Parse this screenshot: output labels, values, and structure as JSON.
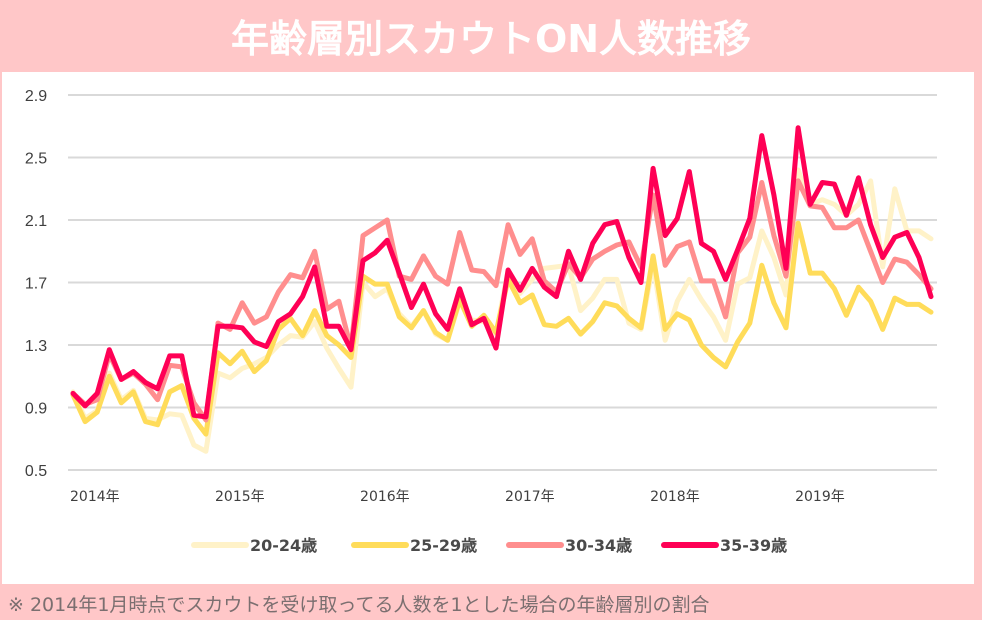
{
  "title": "年齢層別スカウトON人数推移",
  "footnote": "※ 2014年1月時点でスカウトを受け取ってる人数を1とした場合の年齢層別の割合",
  "chart_data": {
    "type": "line",
    "title": "年齢層別スカウトON人数推移",
    "xlabel": "",
    "ylabel": "",
    "ylim": [
      0.5,
      2.9
    ],
    "yticks": [
      0.5,
      0.9,
      1.3,
      1.7,
      2.1,
      2.5,
      2.9
    ],
    "ytick_labels": [
      "0.5",
      "0.9",
      "1.3",
      "1.7",
      "2.1",
      "2.5",
      "2.9"
    ],
    "grid": true,
    "legend_position": "bottom",
    "x_start": "2014-01",
    "x_frequency": "monthly",
    "xtick_labels": [
      {
        "index": 0,
        "label": "2014年"
      },
      {
        "index": 12,
        "label": "2015年"
      },
      {
        "index": 24,
        "label": "2016年"
      },
      {
        "index": 36,
        "label": "2017年"
      },
      {
        "index": 48,
        "label": "2018年"
      },
      {
        "index": 60,
        "label": "2019年"
      }
    ],
    "series": [
      {
        "name": "20-24歳",
        "color": "#fff2c8",
        "values": [
          1.0,
          0.83,
          0.88,
          1.12,
          0.95,
          1.01,
          0.83,
          0.82,
          0.86,
          0.85,
          0.66,
          0.62,
          1.12,
          1.09,
          1.15,
          1.18,
          1.22,
          1.3,
          1.36,
          1.35,
          1.45,
          1.28,
          1.15,
          1.03,
          1.7,
          1.61,
          1.66,
          1.5,
          1.42,
          1.52,
          1.37,
          1.33,
          1.58,
          1.46,
          1.45,
          1.37,
          1.78,
          1.63,
          1.72,
          1.79,
          1.8,
          1.81,
          1.52,
          1.6,
          1.72,
          1.72,
          1.44,
          1.4,
          1.82,
          1.33,
          1.58,
          1.72,
          1.59,
          1.48,
          1.33,
          1.69,
          1.73,
          2.03,
          1.86,
          1.62,
          2.42,
          2.2,
          2.23,
          2.2,
          2.13,
          2.2,
          2.35,
          1.8,
          2.3,
          2.03,
          2.03,
          1.98
        ]
      },
      {
        "name": "25-29歳",
        "color": "#ffdc5a",
        "values": [
          0.98,
          0.81,
          0.87,
          1.1,
          0.93,
          1.0,
          0.81,
          0.79,
          1.0,
          1.04,
          0.83,
          0.73,
          1.25,
          1.18,
          1.26,
          1.13,
          1.2,
          1.4,
          1.47,
          1.36,
          1.52,
          1.36,
          1.3,
          1.22,
          1.74,
          1.69,
          1.69,
          1.48,
          1.41,
          1.52,
          1.38,
          1.33,
          1.59,
          1.42,
          1.49,
          1.38,
          1.72,
          1.57,
          1.62,
          1.43,
          1.42,
          1.47,
          1.37,
          1.45,
          1.57,
          1.55,
          1.47,
          1.41,
          1.87,
          1.4,
          1.5,
          1.46,
          1.3,
          1.22,
          1.16,
          1.32,
          1.44,
          1.81,
          1.57,
          1.41,
          2.08,
          1.76,
          1.76,
          1.66,
          1.49,
          1.67,
          1.58,
          1.4,
          1.6,
          1.56,
          1.56,
          1.51
        ]
      },
      {
        "name": "30-34歳",
        "color": "#ff8e8e",
        "values": [
          0.99,
          0.92,
          0.95,
          1.24,
          1.08,
          1.12,
          1.05,
          0.95,
          1.17,
          1.16,
          0.93,
          0.82,
          1.44,
          1.4,
          1.57,
          1.44,
          1.48,
          1.64,
          1.75,
          1.73,
          1.9,
          1.53,
          1.58,
          1.28,
          2.0,
          2.05,
          2.1,
          1.74,
          1.72,
          1.87,
          1.74,
          1.69,
          2.02,
          1.78,
          1.77,
          1.68,
          2.07,
          1.88,
          1.98,
          1.71,
          1.64,
          1.82,
          1.73,
          1.85,
          1.9,
          1.94,
          1.96,
          1.8,
          2.26,
          1.81,
          1.93,
          1.96,
          1.71,
          1.71,
          1.48,
          1.89,
          1.99,
          2.34,
          2.0,
          1.74,
          2.35,
          2.19,
          2.18,
          2.05,
          2.05,
          2.1,
          1.9,
          1.7,
          1.85,
          1.83,
          1.75,
          1.66
        ]
      },
      {
        "name": "35-39歳",
        "color": "#ff0055",
        "values": [
          0.99,
          0.91,
          0.99,
          1.27,
          1.08,
          1.13,
          1.06,
          1.02,
          1.23,
          1.23,
          0.85,
          0.84,
          1.42,
          1.42,
          1.41,
          1.32,
          1.29,
          1.45,
          1.5,
          1.61,
          1.8,
          1.42,
          1.42,
          1.27,
          1.84,
          1.89,
          1.97,
          1.76,
          1.54,
          1.69,
          1.5,
          1.4,
          1.66,
          1.43,
          1.47,
          1.28,
          1.78,
          1.65,
          1.79,
          1.67,
          1.61,
          1.9,
          1.72,
          1.95,
          2.07,
          2.09,
          1.86,
          1.7,
          2.43,
          2.0,
          2.11,
          2.41,
          1.95,
          1.9,
          1.72,
          1.91,
          2.11,
          2.64,
          2.26,
          1.79,
          2.69,
          2.2,
          2.34,
          2.33,
          2.13,
          2.37,
          2.07,
          1.86,
          1.99,
          2.02,
          1.86,
          1.61
        ]
      }
    ]
  }
}
